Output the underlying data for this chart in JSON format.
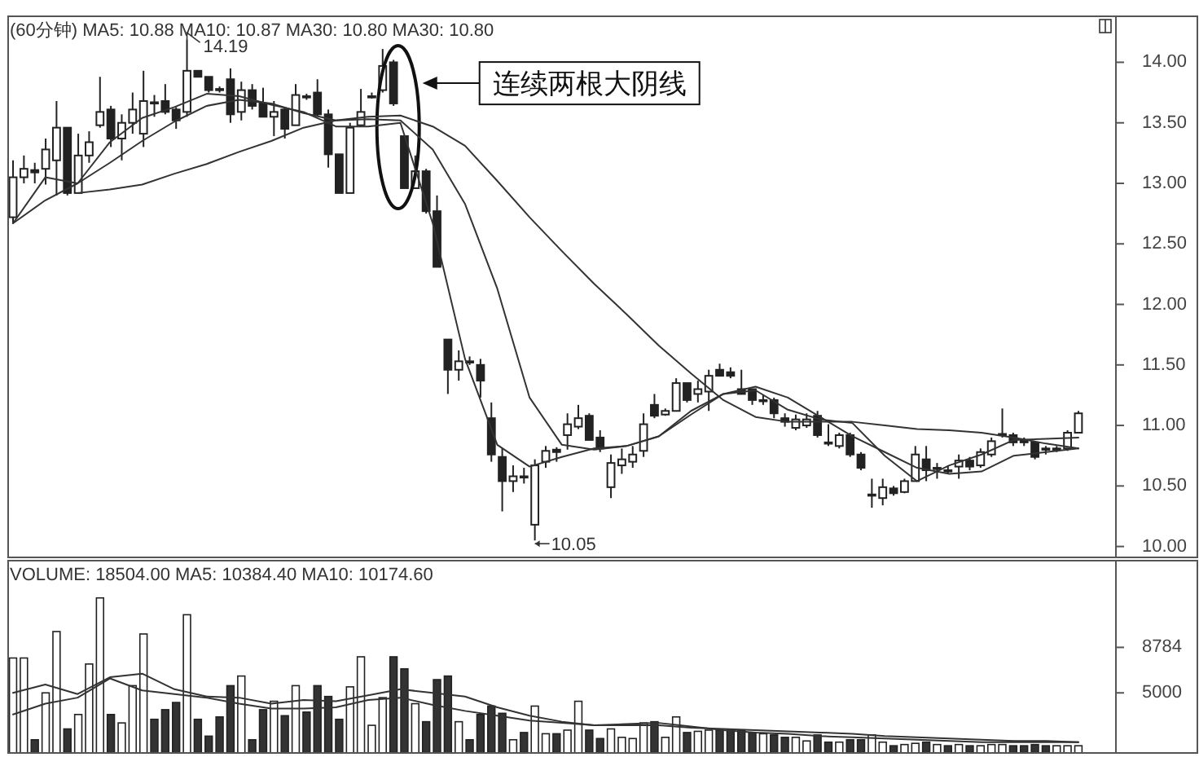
{
  "chart_data": [
    {
      "type": "candlestick",
      "title": "(60分钟) MA5: 10.88 MA10: 10.87 MA30: 10.80 MA30: 10.80",
      "categories": [
        null,
        null,
        null,
        null,
        null,
        null,
        null,
        null,
        null,
        null,
        null,
        null,
        null,
        null,
        null,
        null,
        null,
        null,
        null,
        null,
        null,
        null,
        null,
        null,
        null,
        null,
        null,
        null,
        null,
        null,
        null,
        null,
        null,
        null,
        null,
        null,
        null,
        null,
        null,
        null,
        null,
        null,
        null,
        null,
        null,
        null,
        null,
        null,
        null,
        null,
        null,
        null,
        null,
        null,
        null,
        null,
        null,
        null,
        null,
        null,
        null,
        null,
        null,
        null,
        null,
        null,
        null,
        null,
        null,
        null,
        null,
        null,
        null,
        null,
        null,
        null,
        null,
        null,
        null,
        null,
        null,
        null,
        null,
        null,
        null,
        null,
        null,
        null,
        null,
        null,
        null,
        null,
        null,
        null,
        null,
        null,
        null,
        null,
        null
      ],
      "ohlc": [
        [
          12.72,
          13.19,
          12.67,
          13.05
        ],
        [
          13.05,
          13.23,
          13.0,
          13.12
        ],
        [
          13.11,
          13.17,
          13.0,
          13.09
        ],
        [
          13.12,
          13.37,
          12.99,
          13.28
        ],
        [
          13.19,
          13.68,
          12.9,
          13.46
        ],
        [
          13.46,
          13.46,
          12.9,
          12.92
        ],
        [
          12.92,
          13.41,
          12.92,
          13.23
        ],
        [
          13.23,
          13.43,
          13.17,
          13.34
        ],
        [
          13.48,
          13.88,
          13.46,
          13.59
        ],
        [
          13.61,
          13.64,
          13.3,
          13.37
        ],
        [
          13.37,
          13.57,
          13.19,
          13.5
        ],
        [
          13.5,
          13.75,
          13.41,
          13.61
        ],
        [
          13.41,
          13.93,
          13.3,
          13.68
        ],
        [
          13.67,
          13.73,
          13.55,
          13.66
        ],
        [
          13.68,
          13.82,
          13.57,
          13.59
        ],
        [
          13.61,
          13.63,
          13.45,
          13.52
        ],
        [
          13.59,
          14.19,
          13.55,
          13.93
        ],
        [
          13.93,
          13.93,
          13.88,
          13.88
        ],
        [
          13.88,
          13.88,
          13.75,
          13.77
        ],
        [
          13.78,
          13.8,
          13.75,
          13.77
        ],
        [
          13.86,
          13.95,
          13.5,
          13.57
        ],
        [
          13.59,
          13.84,
          13.52,
          13.77
        ],
        [
          13.77,
          13.82,
          13.61,
          13.64
        ],
        [
          13.66,
          13.79,
          13.55,
          13.55
        ],
        [
          13.55,
          13.68,
          13.39,
          13.59
        ],
        [
          13.61,
          13.63,
          13.37,
          13.45
        ],
        [
          13.48,
          13.82,
          13.48,
          13.73
        ],
        [
          13.72,
          13.74,
          13.69,
          13.71
        ],
        [
          13.75,
          13.86,
          13.55,
          13.57
        ],
        [
          13.57,
          13.61,
          13.13,
          13.24
        ],
        [
          13.24,
          13.24,
          12.92,
          12.92
        ],
        [
          12.92,
          13.5,
          12.92,
          13.46
        ],
        [
          13.48,
          13.78,
          13.47,
          13.59
        ],
        [
          13.72,
          13.75,
          13.7,
          13.72
        ],
        [
          13.77,
          14.11,
          13.75,
          13.97
        ],
        [
          14.0,
          14.02,
          13.64,
          13.66
        ],
        [
          13.39,
          13.39,
          12.96,
          12.96
        ],
        [
          12.96,
          13.23,
          12.96,
          13.1
        ],
        [
          13.1,
          13.12,
          12.75,
          12.77
        ],
        [
          12.77,
          12.9,
          12.31,
          12.31
        ],
        [
          11.71,
          11.71,
          11.26,
          11.46
        ],
        [
          11.46,
          11.62,
          11.37,
          11.53
        ],
        [
          11.53,
          11.57,
          11.5,
          11.52
        ],
        [
          11.5,
          11.55,
          11.23,
          11.37
        ],
        [
          11.06,
          11.19,
          10.7,
          10.76
        ],
        [
          10.74,
          10.81,
          10.29,
          10.54
        ],
        [
          10.54,
          10.67,
          10.45,
          10.58
        ],
        [
          10.58,
          10.65,
          10.52,
          10.57
        ],
        [
          10.18,
          10.72,
          10.05,
          10.67
        ],
        [
          10.7,
          10.83,
          10.65,
          10.79
        ],
        [
          10.8,
          10.82,
          10.7,
          10.78
        ],
        [
          10.92,
          11.1,
          10.8,
          11.01
        ],
        [
          10.99,
          11.17,
          10.97,
          11.06
        ],
        [
          11.08,
          11.1,
          10.88,
          10.88
        ],
        [
          10.9,
          10.96,
          10.78,
          10.81
        ],
        [
          10.49,
          10.76,
          10.4,
          10.69
        ],
        [
          10.67,
          10.81,
          10.6,
          10.72
        ],
        [
          10.7,
          10.83,
          10.65,
          10.76
        ],
        [
          10.79,
          11.1,
          10.74,
          11.01
        ],
        [
          11.17,
          11.26,
          11.06,
          11.08
        ],
        [
          11.09,
          11.14,
          11.08,
          11.12
        ],
        [
          11.12,
          11.39,
          11.12,
          11.35
        ],
        [
          11.35,
          11.35,
          11.19,
          11.21
        ],
        [
          11.26,
          11.37,
          11.19,
          11.3
        ],
        [
          11.28,
          11.46,
          11.12,
          11.41
        ],
        [
          11.46,
          11.51,
          11.41,
          11.41
        ],
        [
          11.44,
          11.48,
          11.39,
          11.41
        ],
        [
          11.3,
          11.46,
          11.26,
          11.26
        ],
        [
          11.3,
          11.3,
          11.17,
          11.21
        ],
        [
          11.21,
          11.25,
          11.17,
          11.21
        ],
        [
          11.21,
          11.23,
          11.06,
          11.1
        ],
        [
          11.06,
          11.1,
          10.99,
          11.03
        ],
        [
          10.98,
          11.09,
          10.96,
          11.05
        ],
        [
          11.0,
          11.1,
          10.98,
          11.05
        ],
        [
          11.08,
          11.12,
          10.9,
          10.92
        ],
        [
          10.86,
          11.01,
          10.83,
          10.85
        ],
        [
          10.83,
          10.94,
          10.81,
          10.92
        ],
        [
          10.92,
          10.94,
          10.74,
          10.76
        ],
        [
          10.76,
          10.78,
          10.63,
          10.65
        ],
        [
          10.43,
          10.56,
          10.32,
          10.43
        ],
        [
          10.4,
          10.56,
          10.34,
          10.49
        ],
        [
          10.48,
          10.5,
          10.42,
          10.44
        ],
        [
          10.45,
          10.56,
          10.44,
          10.54
        ],
        [
          10.54,
          10.83,
          10.54,
          10.76
        ],
        [
          10.72,
          10.83,
          10.54,
          10.63
        ],
        [
          10.65,
          10.69,
          10.56,
          10.65
        ],
        [
          10.63,
          10.67,
          10.6,
          10.62
        ],
        [
          10.66,
          10.76,
          10.56,
          10.71
        ],
        [
          10.71,
          10.74,
          10.63,
          10.66
        ],
        [
          10.67,
          10.81,
          10.65,
          10.78
        ],
        [
          10.76,
          10.9,
          10.74,
          10.87
        ],
        [
          10.92,
          11.14,
          10.9,
          10.93
        ],
        [
          10.92,
          10.94,
          10.83,
          10.86
        ],
        [
          10.88,
          10.9,
          10.83,
          10.86
        ],
        [
          10.86,
          10.87,
          10.72,
          10.74
        ],
        [
          10.81,
          10.83,
          10.76,
          10.8
        ],
        [
          10.8,
          10.83,
          10.78,
          10.81
        ],
        [
          10.81,
          10.96,
          10.79,
          10.94
        ],
        [
          10.94,
          11.12,
          10.94,
          11.1
        ]
      ],
      "ylim": [
        9.91,
        14.38
      ],
      "yticks": [
        {
          "value": 10,
          "label": "10.00"
        },
        {
          "value": 10.5,
          "label": "10.50"
        },
        {
          "value": 11,
          "label": "11.00"
        },
        {
          "value": 11.5,
          "label": "11.50"
        },
        {
          "value": 12,
          "label": "12.00"
        },
        {
          "value": 12.5,
          "label": "12.50"
        },
        {
          "value": 13,
          "label": "13.00"
        },
        {
          "value": 13.5,
          "label": "13.50"
        },
        {
          "value": 14,
          "label": "14.00"
        }
      ],
      "tick_labels": "y",
      "annotations": [
        "14.19",
        "10.05",
        "连续两根大阴线"
      ]
    },
    {
      "type": "line",
      "categories": [
        null,
        null,
        null,
        null,
        null,
        null,
        null,
        null,
        null,
        null,
        null,
        null,
        null,
        null,
        null,
        null,
        null,
        null,
        null,
        null,
        null,
        null,
        null,
        null,
        null,
        null,
        null,
        null,
        null,
        null,
        null,
        null,
        null,
        null
      ],
      "series": [
        {
          "color": "#333333",
          "values": [
            12.67,
            13.05,
            13.0,
            13.34,
            13.54,
            13.63,
            13.74,
            13.72,
            13.65,
            13.59,
            13.47,
            13.47,
            13.5,
            12.67,
            11.55,
            10.84,
            10.66,
            10.74,
            10.81,
            10.83,
            10.91,
            11.09,
            11.26,
            11.29,
            11.13,
            11.05,
            11.02,
            10.75,
            10.54,
            10.67,
            10.76,
            10.88,
            10.89,
            10.9
          ]
        },
        {
          "color": "#333333",
          "values": [
            12.67,
            12.86,
            13.0,
            13.17,
            13.35,
            13.51,
            13.64,
            13.69,
            13.66,
            13.58,
            13.52,
            13.53,
            13.52,
            13.28,
            12.83,
            12.13,
            11.23,
            10.84,
            10.8,
            10.83,
            10.91,
            11.12,
            11.26,
            11.32,
            11.23,
            11.07,
            10.91,
            10.78,
            10.65,
            10.6,
            10.62,
            10.75,
            10.78,
            10.81
          ]
        },
        {
          "color": "#333333",
          "values": [
            null,
            null,
            12.92,
            12.95,
            12.99,
            13.08,
            13.16,
            13.26,
            13.35,
            13.46,
            13.52,
            13.55,
            13.56,
            13.47,
            13.31,
            13.02,
            12.72,
            12.44,
            12.17,
            11.92,
            11.66,
            11.43,
            11.21,
            11.07,
            11.03,
            11.03,
            11.03,
            11.0,
            10.97,
            10.96,
            10.94,
            10.9,
            10.85,
            10.81
          ]
        }
      ],
      "ylim": [
        9.91,
        14.38
      ],
      "tick_labels": false
    },
    {
      "type": "bar",
      "title": "VOLUME: 18504.00 MA5: 10384.40 MA10: 10174.60",
      "categories": [
        null,
        null,
        null,
        null,
        null,
        null,
        null,
        null,
        null,
        null,
        null,
        null,
        null,
        null,
        null,
        null,
        null,
        null,
        null,
        null,
        null,
        null,
        null,
        null,
        null,
        null,
        null,
        null,
        null,
        null,
        null,
        null,
        null,
        null,
        null,
        null,
        null,
        null,
        null,
        null,
        null,
        null,
        null,
        null,
        null,
        null,
        null,
        null,
        null,
        null,
        null,
        null,
        null,
        null,
        null,
        null,
        null,
        null,
        null,
        null,
        null,
        null,
        null,
        null,
        null,
        null,
        null,
        null,
        null,
        null,
        null,
        null,
        null,
        null,
        null,
        null,
        null,
        null,
        null,
        null,
        null,
        null,
        null,
        null,
        null,
        null,
        null,
        null,
        null,
        null,
        null,
        null,
        null,
        null,
        null,
        null,
        null,
        null,
        null
      ],
      "values": [
        7900,
        7900,
        1100,
        5000,
        10100,
        2000,
        3200,
        7400,
        12900,
        3200,
        2500,
        5600,
        9900,
        2800,
        3600,
        4200,
        11500,
        2800,
        1400,
        3000,
        5600,
        6400,
        1100,
        3600,
        4300,
        3100,
        5600,
        3400,
        5600,
        4700,
        2800,
        5500,
        8000,
        2300,
        4600,
        8000,
        7000,
        4100,
        2600,
        6100,
        6400,
        2600,
        1100,
        3200,
        3900,
        3300,
        1100,
        1700,
        3900,
        1600,
        1600,
        1900,
        4300,
        1900,
        1200,
        2000,
        1300,
        1200,
        2500,
        2600,
        1300,
        3000,
        1700,
        1800,
        1900,
        1900,
        1900,
        1900,
        1700,
        1600,
        1500,
        1300,
        1300,
        1000,
        1500,
        900,
        900,
        1100,
        1100,
        1500,
        900,
        600,
        700,
        800,
        900,
        700,
        600,
        700,
        600,
        600,
        700,
        700,
        600,
        600,
        700,
        600,
        600,
        600,
        600
      ],
      "colors": [
        "#ffffff",
        "#ffffff",
        "#333333",
        "#ffffff",
        "#ffffff",
        "#333333",
        "#ffffff",
        "#ffffff",
        "#ffffff",
        "#333333",
        "#ffffff",
        "#ffffff",
        "#ffffff",
        "#333333",
        "#333333",
        "#333333",
        "#ffffff",
        "#333333",
        "#333333",
        "#333333",
        "#333333",
        "#ffffff",
        "#333333",
        "#333333",
        "#ffffff",
        "#333333",
        "#ffffff",
        "#333333",
        "#333333",
        "#333333",
        "#333333",
        "#ffffff",
        "#ffffff",
        "#ffffff",
        "#ffffff",
        "#333333",
        "#333333",
        "#ffffff",
        "#333333",
        "#333333",
        "#333333",
        "#ffffff",
        "#333333",
        "#333333",
        "#333333",
        "#333333",
        "#ffffff",
        "#333333",
        "#ffffff",
        "#ffffff",
        "#333333",
        "#ffffff",
        "#ffffff",
        "#333333",
        "#333333",
        "#ffffff",
        "#ffffff",
        "#ffffff",
        "#ffffff",
        "#333333",
        "#ffffff",
        "#ffffff",
        "#333333",
        "#ffffff",
        "#ffffff",
        "#333333",
        "#333333",
        "#333333",
        "#333333",
        "#ffffff",
        "#333333",
        "#333333",
        "#ffffff",
        "#ffffff",
        "#333333",
        "#333333",
        "#ffffff",
        "#333333",
        "#333333",
        "#ffffff",
        "#ffffff",
        "#333333",
        "#ffffff",
        "#ffffff",
        "#333333",
        "#ffffff",
        "#333333",
        "#ffffff",
        "#333333",
        "#ffffff",
        "#ffffff",
        "#ffffff",
        "#333333",
        "#333333",
        "#333333",
        "#333333",
        "#ffffff",
        "#ffffff",
        "#ffffff"
      ],
      "ylim": [
        0,
        16000
      ],
      "yticks": [
        5000,
        8784
      ],
      "tick_labels": "y"
    },
    {
      "type": "line",
      "categories": [
        null,
        null,
        null,
        null,
        null,
        null,
        null,
        null,
        null,
        null,
        null,
        null,
        null,
        null,
        null,
        null,
        null,
        null,
        null,
        null,
        null,
        null,
        null,
        null,
        null,
        null,
        null,
        null,
        null,
        null,
        null,
        null,
        null,
        null
      ],
      "series": [
        {
          "color": "#333333",
          "values": [
            5000,
            5700,
            4900,
            6300,
            6600,
            5300,
            4700,
            4600,
            4100,
            4400,
            4300,
            4800,
            5300,
            5000,
            4700,
            3800,
            3100,
            2600,
            2300,
            2400,
            2500,
            2200,
            1900,
            1700,
            1600,
            1400,
            1300,
            1200,
            1100,
            1000,
            900,
            900,
            900,
            900
          ]
        },
        {
          "color": "#333333",
          "values": [
            3200,
            4100,
            4600,
            6200,
            5200,
            4900,
            4600,
            4100,
            3700,
            3700,
            3800,
            4400,
            4600,
            4000,
            3500,
            3100,
            2700,
            2500,
            2300,
            2300,
            2300,
            2100,
            2000,
            1900,
            1800,
            1700,
            1600,
            1400,
            1300,
            1200,
            1100,
            1000,
            1000,
            900
          ]
        }
      ],
      "ylim": [
        0,
        16000
      ],
      "tick_labels": false
    }
  ]
}
